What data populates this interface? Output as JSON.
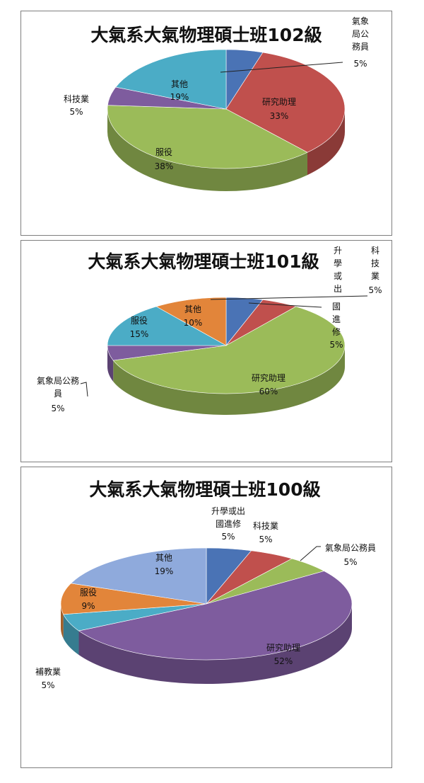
{
  "chart_data": [
    {
      "type": "pie",
      "title": "大氣系大氣物理碩士班102級",
      "slices": [
        {
          "label": "氣象局公務員",
          "value": 5,
          "pct_text": "5%",
          "color": "#4a73b5"
        },
        {
          "label": "研究助理",
          "value": 33,
          "pct_text": "33%",
          "color": "#c0504d"
        },
        {
          "label": "服役",
          "value": 38,
          "pct_text": "38%",
          "color": "#9bbb59"
        },
        {
          "label": "科技業",
          "value": 5,
          "pct_text": "5%",
          "color": "#7e5c9e"
        },
        {
          "label": "其他",
          "value": 19,
          "pct_text": "19%",
          "color": "#4bacc6"
        }
      ]
    },
    {
      "type": "pie",
      "title": "大氣系大氣物理碩士班101級",
      "slices": [
        {
          "label": "科技業",
          "value": 5,
          "pct_text": "5%",
          "color": "#4a73b5"
        },
        {
          "label": "國進修",
          "value": 5,
          "pct_text": "5%",
          "color": "#c0504d"
        },
        {
          "label": "研究助理",
          "value": 60,
          "pct_text": "60%",
          "color": "#9bbb59"
        },
        {
          "label": "氣象局公務員",
          "value": 5,
          "pct_text": "5%",
          "color": "#7e5c9e"
        },
        {
          "label": "服役",
          "value": 15,
          "pct_text": "15%",
          "color": "#4bacc6"
        },
        {
          "label": "其他",
          "value": 10,
          "pct_text": "10%",
          "color": "#e2853a"
        }
      ],
      "extra_text": "升學或出"
    },
    {
      "type": "pie",
      "title": "大氣系大氣物理碩士班100級",
      "slices": [
        {
          "label": "升學或出國進修",
          "value": 5,
          "pct_text": "5%",
          "color": "#4a73b5"
        },
        {
          "label": "科技業",
          "value": 5,
          "pct_text": "5%",
          "color": "#c0504d"
        },
        {
          "label": "氣象局公務員",
          "value": 5,
          "pct_text": "5%",
          "color": "#9bbb59"
        },
        {
          "label": "研究助理",
          "value": 52,
          "pct_text": "52%",
          "color": "#7e5c9e"
        },
        {
          "label": "補教業",
          "value": 5,
          "pct_text": "5%",
          "color": "#4bacc6"
        },
        {
          "label": "服役",
          "value": 9,
          "pct_text": "9%",
          "color": "#e2853a"
        },
        {
          "label": "其他",
          "value": 19,
          "pct_text": "19%",
          "color": "#8faadc"
        }
      ]
    }
  ]
}
